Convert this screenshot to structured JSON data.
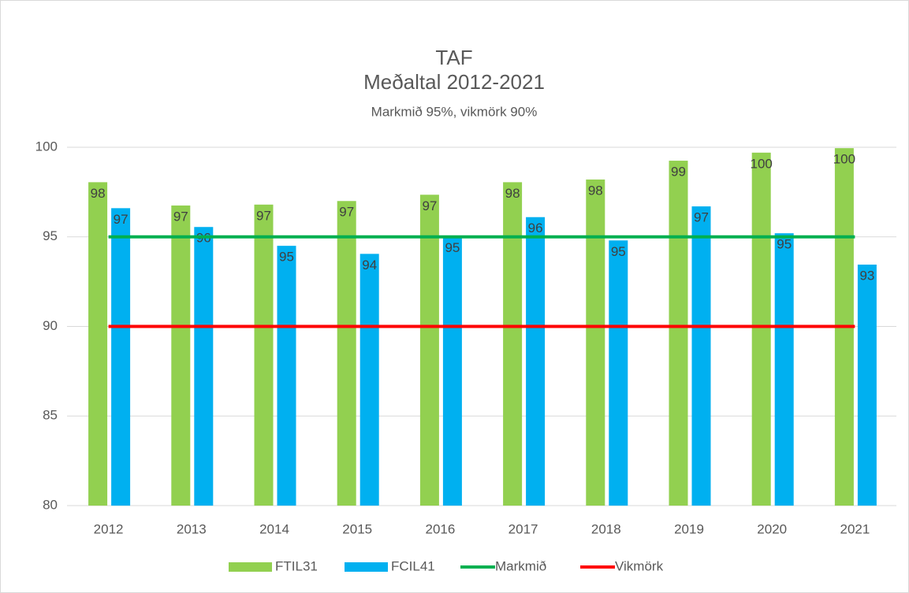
{
  "chart_data": {
    "type": "bar",
    "title": "TAF",
    "title_line2": "Meðaltal 2012-2021",
    "subtitle": "Markmið 95%, vikmörk 90%",
    "categories": [
      "2012",
      "2013",
      "2014",
      "2015",
      "2016",
      "2017",
      "2018",
      "2019",
      "2020",
      "2021"
    ],
    "series": [
      {
        "name": "FTIL31",
        "color": "#92d050",
        "type": "bar",
        "values": [
          98.05,
          96.75,
          96.8,
          97.0,
          97.35,
          98.05,
          98.2,
          99.25,
          99.7,
          99.95
        ],
        "value_labels": [
          "98",
          "97",
          "97",
          "97",
          "97",
          "98",
          "98",
          "99",
          "100",
          "100"
        ]
      },
      {
        "name": "FCIL41",
        "color": "#00b0f0",
        "type": "bar",
        "values": [
          96.6,
          95.55,
          94.5,
          94.05,
          95.0,
          96.1,
          94.8,
          96.7,
          95.2,
          93.45
        ],
        "value_labels": [
          "97",
          "96",
          "95",
          "94",
          "95",
          "96",
          "95",
          "97",
          "95",
          "93"
        ]
      },
      {
        "name": "Markmið",
        "color": "#00b050",
        "type": "line",
        "values": [
          95,
          95,
          95,
          95,
          95,
          95,
          95,
          95,
          95,
          95
        ]
      },
      {
        "name": "Vikmörk",
        "color": "#ff0000",
        "type": "line",
        "values": [
          90,
          90,
          90,
          90,
          90,
          90,
          90,
          90,
          90,
          90
        ]
      }
    ],
    "ylim": [
      80,
      100
    ],
    "yticks": [
      80,
      85,
      90,
      95,
      100
    ],
    "grid": true,
    "legend": "bottom"
  }
}
